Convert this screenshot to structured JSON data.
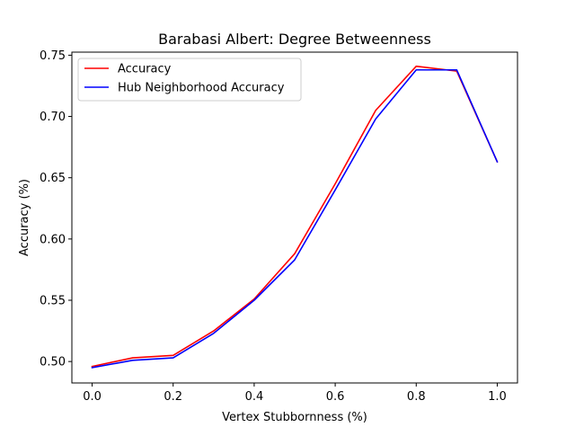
{
  "chart_data": {
    "type": "line",
    "title": "Barabasi Albert: Degree Betweenness",
    "xlabel": "Vertex Stubbornness (%)",
    "ylabel": "Accuracy (%)",
    "xlim": [
      -0.05,
      1.05
    ],
    "ylim": [
      0.4825,
      0.7525
    ],
    "grid": false,
    "legend_position": "upper-left",
    "x": [
      0.0,
      0.1,
      0.2,
      0.3,
      0.4,
      0.5,
      0.6,
      0.7,
      0.8,
      0.9,
      1.0
    ],
    "x_ticks": [
      0.0,
      0.2,
      0.4,
      0.6,
      0.8,
      1.0
    ],
    "x_tick_labels": [
      "0.0",
      "0.2",
      "0.4",
      "0.6",
      "0.8",
      "1.0"
    ],
    "y_ticks": [
      0.5,
      0.55,
      0.6,
      0.65,
      0.7,
      0.75
    ],
    "y_tick_labels": [
      "0.50",
      "0.55",
      "0.60",
      "0.65",
      "0.70",
      "0.75"
    ],
    "series": [
      {
        "name": "Accuracy",
        "color": "#ff0000",
        "values": [
          0.496,
          0.503,
          0.505,
          0.525,
          0.551,
          0.588,
          0.645,
          0.705,
          0.741,
          0.737,
          0.663
        ]
      },
      {
        "name": "Hub Neighborhood Accuracy",
        "color": "#0000ff",
        "values": [
          0.495,
          0.501,
          0.503,
          0.523,
          0.55,
          0.583,
          0.64,
          0.698,
          0.738,
          0.738,
          0.663
        ]
      }
    ]
  }
}
